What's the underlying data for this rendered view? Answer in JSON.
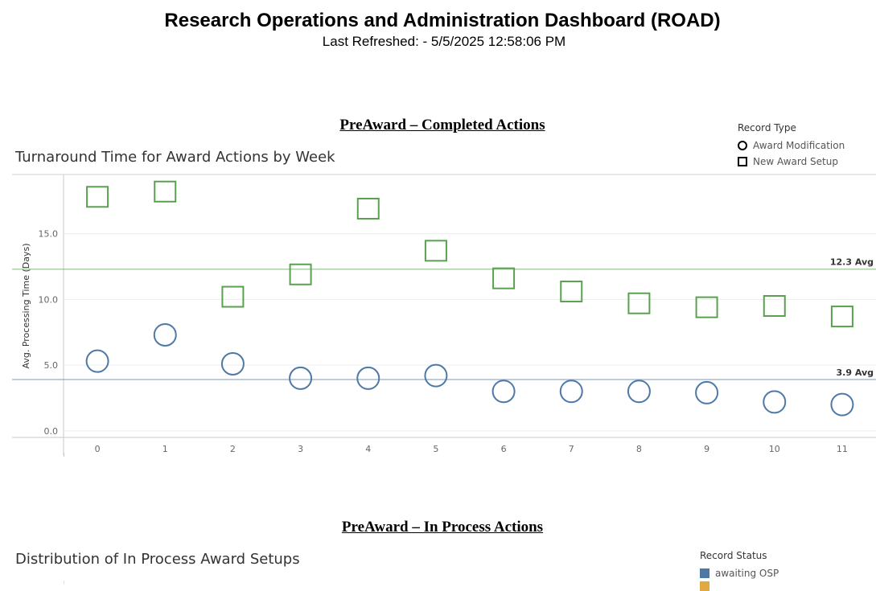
{
  "header": {
    "title": "Research Operations and Administration Dashboard (ROAD)",
    "subtitle": "Last Refreshed: - 5/5/2025 12:58:06 PM"
  },
  "section1": {
    "title": "PreAward – Completed Actions"
  },
  "legend1": {
    "title": "Record Type",
    "items": [
      {
        "label": "Award Modification",
        "marker": "circle"
      },
      {
        "label": "New Award Setup",
        "marker": "square"
      }
    ]
  },
  "section2": {
    "title": "PreAward – In Process Actions"
  },
  "chart2": {
    "title": "Distribution of In Process Award Setups"
  },
  "legend2": {
    "title": "Record Status",
    "items": [
      {
        "label": "awaiting OSP",
        "color": "#4e79a7"
      }
    ],
    "extra_color": "#e1a93f"
  },
  "chart_data": {
    "type": "scatter",
    "title": "Turnaround Time for Award Actions by Week",
    "xlabel": "",
    "ylabel": "Avg. Processing Time (Days)",
    "x": [
      0,
      1,
      2,
      3,
      4,
      5,
      6,
      7,
      8,
      9,
      10,
      11
    ],
    "xlim": [
      -0.5,
      11.5
    ],
    "ylim": [
      -0.5,
      19.5
    ],
    "yticks": [
      0,
      5,
      10,
      15
    ],
    "yticklabels": [
      "0.0",
      "5.0",
      "10.0",
      "15.0"
    ],
    "grid": true,
    "legend": "top-right",
    "series": [
      {
        "name": "Award Modification",
        "marker": "circle",
        "color": "#4e79a7",
        "values": [
          5.3,
          7.3,
          5.1,
          4.0,
          4.0,
          4.2,
          3.0,
          3.0,
          3.0,
          2.9,
          2.2,
          2.0
        ]
      },
      {
        "name": "New Award Setup",
        "marker": "square",
        "color": "#59a14f",
        "values": [
          17.8,
          18.2,
          10.2,
          11.9,
          16.9,
          13.7,
          11.6,
          10.6,
          9.7,
          9.4,
          9.5,
          8.7
        ]
      }
    ],
    "reference_lines": [
      {
        "value": 12.3,
        "label": "12.3 Avg",
        "color": "#59a14f"
      },
      {
        "value": 3.9,
        "label": "3.9 Avg",
        "color": "#4e79a7"
      }
    ]
  }
}
